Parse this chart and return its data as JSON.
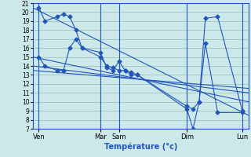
{
  "xlabel": "Température (°c)",
  "bg_color": "#cce8e8",
  "line_color": "#2255bb",
  "grid_color": "#99bbbb",
  "ylim": [
    7,
    21
  ],
  "ytick_labels": [
    "7",
    "8",
    "9",
    "10",
    "11",
    "12",
    "13",
    "14",
    "15",
    "16",
    "17",
    "18",
    "19",
    "20",
    "21"
  ],
  "ytick_vals": [
    7,
    8,
    9,
    10,
    11,
    12,
    13,
    14,
    15,
    16,
    17,
    18,
    19,
    20,
    21
  ],
  "xlim": [
    0,
    35
  ],
  "xtick_positions": [
    1,
    11,
    14,
    25,
    34
  ],
  "xtick_labels": [
    "Ven",
    "Mar",
    "Sam",
    "Dim",
    "Lun"
  ],
  "vline_positions": [
    1,
    11,
    14,
    25,
    34
  ],
  "series1_x": [
    1,
    2,
    4,
    5,
    6,
    7,
    8,
    11,
    12,
    13,
    14,
    15,
    16,
    17,
    25,
    26,
    27,
    28,
    30,
    34
  ],
  "series1_y": [
    20.5,
    19.0,
    19.5,
    19.8,
    19.5,
    18.0,
    16.0,
    15.5,
    13.8,
    13.5,
    14.5,
    13.5,
    13.0,
    13.0,
    9.2,
    7.0,
    10.0,
    19.3,
    19.5,
    9.0
  ],
  "series2_x": [
    1,
    2,
    4,
    5,
    6,
    7,
    8,
    11,
    12,
    13,
    14,
    15,
    16,
    17,
    25,
    26,
    27,
    28,
    30,
    34
  ],
  "series2_y": [
    15.0,
    14.0,
    13.5,
    13.5,
    16.0,
    17.0,
    16.0,
    15.0,
    14.0,
    13.8,
    13.5,
    13.5,
    13.3,
    13.0,
    9.5,
    9.2,
    10.0,
    16.5,
    8.8,
    8.8
  ],
  "trend1_x": [
    0,
    35
  ],
  "trend1_y": [
    20.5,
    8.5
  ],
  "trend2_x": [
    0,
    35
  ],
  "trend2_y": [
    15.0,
    10.0
  ],
  "trend3_x": [
    0,
    35
  ],
  "trend3_y": [
    14.0,
    11.0
  ],
  "trend4_x": [
    0,
    35
  ],
  "trend4_y": [
    13.5,
    11.5
  ]
}
